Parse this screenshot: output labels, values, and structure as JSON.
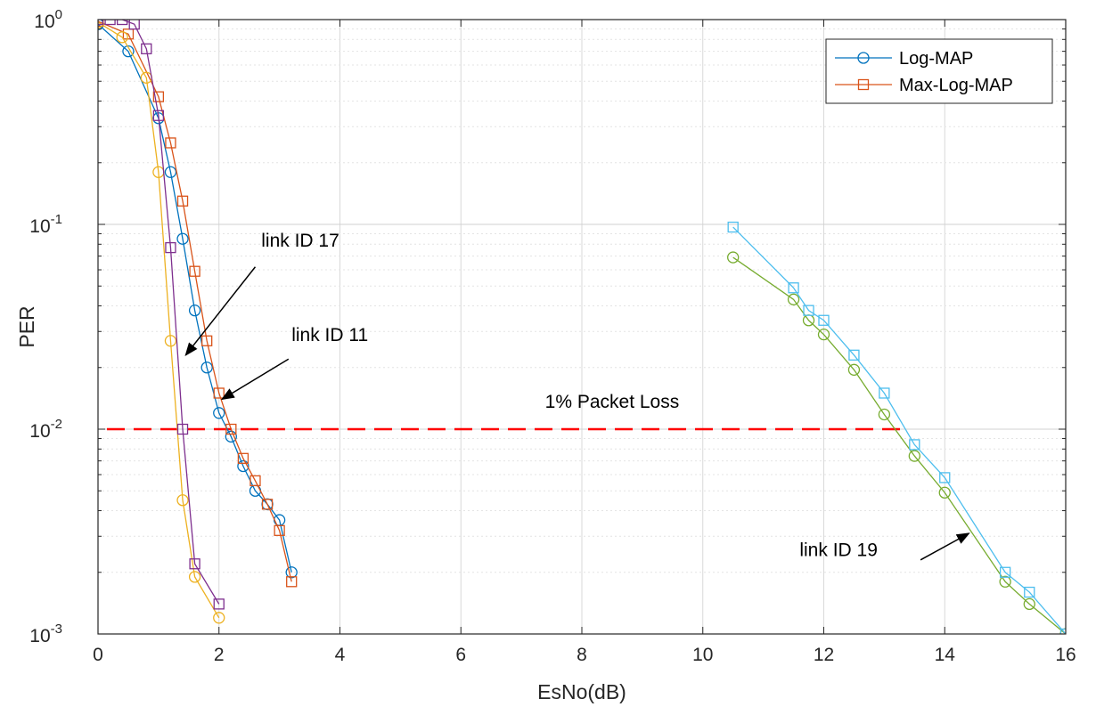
{
  "chart_data": {
    "type": "line",
    "xlabel": "EsNo(dB)",
    "ylabel": "PER",
    "xlim": [
      0,
      16
    ],
    "ylim": [
      0.001,
      1
    ],
    "yscale": "log",
    "grid": true,
    "x_ticks": [
      "0",
      "2",
      "4",
      "6",
      "8",
      "10",
      "12",
      "14",
      "16"
    ],
    "y_ticks": [
      {
        "base": "10",
        "exp": "0"
      },
      {
        "base": "10",
        "exp": "-1"
      },
      {
        "base": "10",
        "exp": "-2"
      },
      {
        "base": "10",
        "exp": "-3"
      }
    ],
    "legend": {
      "position": "top-right",
      "entries": [
        {
          "label": "Log-MAP",
          "color": "#0072bd",
          "marker": "circle"
        },
        {
          "label": "Max-Log-MAP",
          "color": "#d95319",
          "marker": "square"
        }
      ]
    },
    "series": [
      {
        "color": "#0072bd",
        "marker": "circle",
        "x": [
          0,
          0.5,
          1.0,
          1.2,
          1.4,
          1.6,
          1.8,
          2.0,
          2.2,
          2.4,
          2.6,
          2.8,
          3.0,
          3.2
        ],
        "y": [
          0.95,
          0.7,
          0.33,
          0.18,
          0.085,
          0.038,
          0.02,
          0.012,
          0.0092,
          0.0066,
          0.005,
          0.0043,
          0.0036,
          0.002
        ]
      },
      {
        "color": "#d95319",
        "marker": "square",
        "x": [
          0,
          0.5,
          1.0,
          1.2,
          1.4,
          1.6,
          1.8,
          2.0,
          2.2,
          2.4,
          2.6,
          2.8,
          3.0,
          3.2
        ],
        "y": [
          0.98,
          0.85,
          0.42,
          0.25,
          0.13,
          0.059,
          0.027,
          0.015,
          0.01,
          0.0072,
          0.0056,
          0.0043,
          0.0032,
          0.0018
        ]
      },
      {
        "color": "#edb120",
        "marker": "circle",
        "x": [
          0,
          0.4,
          0.8,
          1.0,
          1.2,
          1.4,
          1.6,
          2.0
        ],
        "y": [
          0.97,
          0.82,
          0.52,
          0.18,
          0.027,
          0.0045,
          0.0019,
          0.0012
        ]
      },
      {
        "color": "#7e2f8e",
        "marker": "square",
        "x": [
          0,
          0.2,
          0.4,
          0.6,
          0.8,
          1.0,
          1.2,
          1.4,
          1.6,
          2.0
        ],
        "y": [
          1.0,
          1.0,
          1.0,
          0.95,
          0.72,
          0.34,
          0.077,
          0.01,
          0.0022,
          0.0014
        ]
      },
      {
        "color": "#77ac30",
        "marker": "circle",
        "x": [
          10.5,
          11.5,
          11.75,
          12.0,
          12.5,
          13.0,
          13.5,
          14.0,
          15.0,
          15.4,
          16.0
        ],
        "y": [
          0.069,
          0.043,
          0.034,
          0.029,
          0.0195,
          0.0118,
          0.0074,
          0.0049,
          0.0018,
          0.0014,
          0.001
        ]
      },
      {
        "color": "#4dbeee",
        "marker": "square",
        "x": [
          10.5,
          11.5,
          11.75,
          12.0,
          12.5,
          13.0,
          13.5,
          14.0,
          15.0,
          15.4,
          16.0
        ],
        "y": [
          0.097,
          0.049,
          0.038,
          0.034,
          0.023,
          0.015,
          0.0084,
          0.0058,
          0.002,
          0.0016,
          0.001
        ]
      }
    ],
    "threshold": {
      "y": 0.01,
      "x_range": [
        0,
        13.3
      ],
      "color": "#ff0000",
      "label": "1% Packet Loss"
    },
    "annotations": [
      {
        "text": "link ID 17",
        "x_text": 2.7,
        "y_text": 0.078,
        "arrow_from": [
          2.6,
          0.062
        ],
        "arrow_to": [
          1.45,
          0.023
        ]
      },
      {
        "text": "link ID 11",
        "x_text": 3.2,
        "y_text": 0.027,
        "arrow_from": [
          3.15,
          0.022
        ],
        "arrow_to": [
          2.05,
          0.014
        ]
      },
      {
        "text": "link ID 19",
        "x_text": 11.6,
        "y_text": 0.0024,
        "arrow_from": [
          13.6,
          0.0023
        ],
        "arrow_to": [
          14.4,
          0.0031
        ]
      }
    ]
  }
}
